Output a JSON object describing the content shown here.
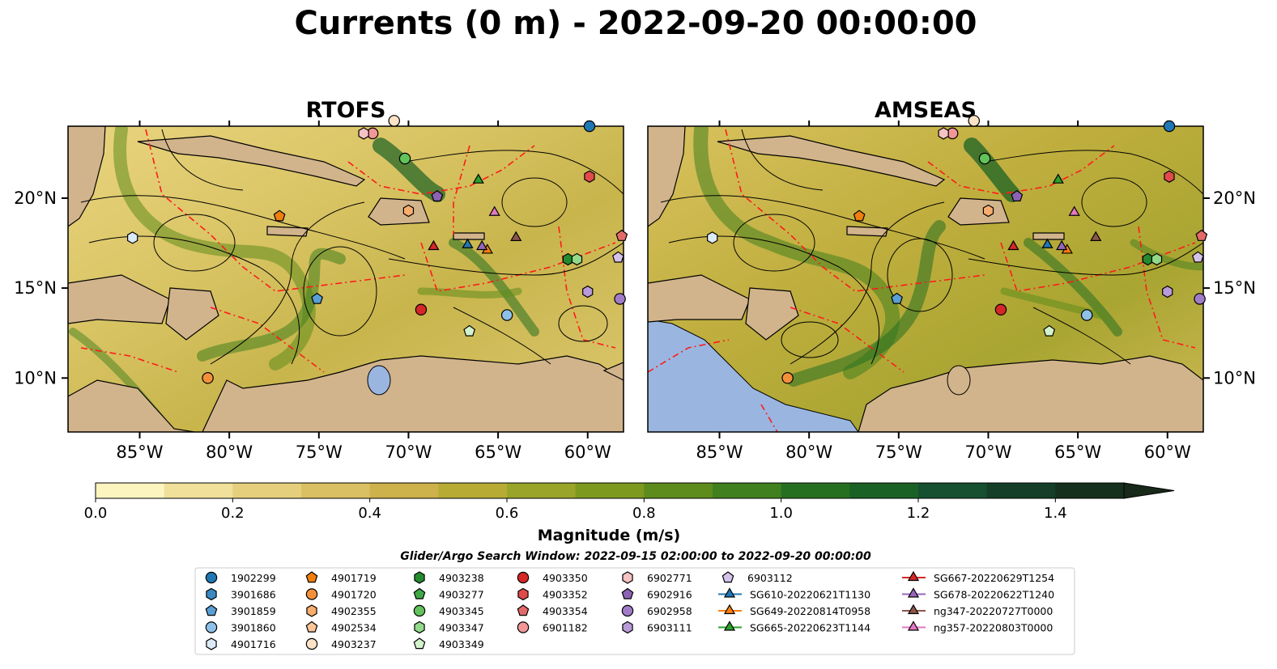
{
  "title": "Currents (0 m) - 2022-09-20 00:00:00",
  "chart_data": {
    "type": "heatmap",
    "panels": [
      {
        "title": "RTOFS",
        "model": "RTOFS"
      },
      {
        "title": "AMSEAS",
        "model": "AMSEAS"
      }
    ],
    "lon_range": [
      -89,
      -58
    ],
    "lat_range": [
      7,
      24
    ],
    "x_ticks": [
      {
        "value": -85,
        "label": "85°W"
      },
      {
        "value": -80,
        "label": "80°W"
      },
      {
        "value": -75,
        "label": "75°W"
      },
      {
        "value": -70,
        "label": "70°W"
      },
      {
        "value": -65,
        "label": "65°W"
      },
      {
        "value": -60,
        "label": "60°W"
      }
    ],
    "y_ticks": [
      {
        "value": 20,
        "label": "20°N"
      },
      {
        "value": 15,
        "label": "15°N"
      },
      {
        "value": 10,
        "label": "10°N"
      }
    ],
    "colorbar": {
      "label": "Magnitude (m/s)",
      "min": 0.0,
      "max": 1.6,
      "extend": "max",
      "ticks": [
        {
          "value": 0.0,
          "label": "0.0"
        },
        {
          "value": 0.2,
          "label": "0.2"
        },
        {
          "value": 0.4,
          "label": "0.4"
        },
        {
          "value": 0.6,
          "label": "0.6"
        },
        {
          "value": 0.8,
          "label": "0.8"
        },
        {
          "value": 1.0,
          "label": "1.0"
        },
        {
          "value": 1.2,
          "label": "1.2"
        },
        {
          "value": 1.4,
          "label": "1.4"
        }
      ],
      "colors": [
        "#fdf5c0",
        "#f0e09a",
        "#e6cf7c",
        "#dac062",
        "#cdb14a",
        "#b7ab34",
        "#9aa428",
        "#7d9a1f",
        "#5e8c1c",
        "#41801e",
        "#276f20",
        "#196124",
        "#165030",
        "#143e27",
        "#15301d",
        "#182819"
      ]
    },
    "search_window": "Glider/Argo Search Window: 2022-09-15 02:00:00 to 2022-09-20 00:00:00",
    "legend_columns": [
      [
        {
          "label": "1902299",
          "marker": "circle",
          "color": "#1f77b4"
        },
        {
          "label": "3901686",
          "marker": "hexagon",
          "color": "#3a8ac2"
        },
        {
          "label": "3901859",
          "marker": "pentagon",
          "color": "#5a9fd4"
        },
        {
          "label": "3901860",
          "marker": "circle",
          "color": "#8ec1e8"
        },
        {
          "label": "4901716",
          "marker": "hexagon",
          "color": "#dbeaf7"
        }
      ],
      [
        {
          "label": "4901719",
          "marker": "pentagon",
          "color": "#f07f0e"
        },
        {
          "label": "4901720",
          "marker": "circle",
          "color": "#f5903a"
        },
        {
          "label": "4902355",
          "marker": "hexagon",
          "color": "#f8ad6e"
        },
        {
          "label": "4902534",
          "marker": "pentagon",
          "color": "#fbc597"
        },
        {
          "label": "4903237",
          "marker": "circle",
          "color": "#fde3c6"
        }
      ],
      [
        {
          "label": "4903238",
          "marker": "hexagon",
          "color": "#238b2e"
        },
        {
          "label": "4903277",
          "marker": "pentagon",
          "color": "#40a844"
        },
        {
          "label": "4903345",
          "marker": "circle",
          "color": "#62c25c"
        },
        {
          "label": "4903347",
          "marker": "hexagon",
          "color": "#93d98a"
        },
        {
          "label": "4903349",
          "marker": "pentagon",
          "color": "#d2f2cb"
        }
      ],
      [
        {
          "label": "4903350",
          "marker": "circle",
          "color": "#d62728"
        },
        {
          "label": "4903352",
          "marker": "hexagon",
          "color": "#e04a4a"
        },
        {
          "label": "4903354",
          "marker": "pentagon",
          "color": "#e46a6a"
        },
        {
          "label": "6901182",
          "marker": "circle",
          "color": "#f19797"
        }
      ],
      [
        {
          "label": "6902771",
          "marker": "hexagon",
          "color": "#f7c2c2"
        },
        {
          "label": "6902916",
          "marker": "pentagon",
          "color": "#8c62b5"
        },
        {
          "label": "6902958",
          "marker": "circle",
          "color": "#a07cc8"
        },
        {
          "label": "6903111",
          "marker": "hexagon",
          "color": "#b89bd8"
        }
      ],
      [
        {
          "label": "6903112",
          "marker": "pentagon",
          "color": "#d4c2ea"
        },
        {
          "label": "SG610-20220621T1130",
          "marker": "triangle",
          "color": "#1f77b4"
        },
        {
          "label": "SG649-20220814T0958",
          "marker": "triangle",
          "color": "#ff7f0e"
        },
        {
          "label": "SG665-20220623T1144",
          "marker": "triangle",
          "color": "#2ca02c"
        }
      ],
      [
        {
          "label": "SG667-20220629T1254",
          "marker": "triangle",
          "color": "#d62728"
        },
        {
          "label": "SG678-20220622T1240",
          "marker": "triangle",
          "color": "#9467bd"
        },
        {
          "label": "ng347-20220727T0000",
          "marker": "triangle",
          "color": "#8c564b"
        },
        {
          "label": "ng357-20220803T0000",
          "marker": "triangle",
          "color": "#e377c2"
        }
      ]
    ],
    "stations": [
      {
        "label": "1902299",
        "lon": -59.9,
        "lat": 24.0
      },
      {
        "label": "3901859",
        "lon": -75.1,
        "lat": 14.4
      },
      {
        "label": "3901860",
        "lon": -64.5,
        "lat": 13.5
      },
      {
        "label": "4901716",
        "lon": -85.4,
        "lat": 17.8
      },
      {
        "label": "4901719",
        "lon": -77.2,
        "lat": 19.0
      },
      {
        "label": "4901720",
        "lon": -81.2,
        "lat": 10.0
      },
      {
        "label": "4902355",
        "lon": -70.0,
        "lat": 19.3
      },
      {
        "label": "4903237",
        "lon": -70.8,
        "lat": 24.3
      },
      {
        "label": "4903238",
        "lon": -61.1,
        "lat": 16.6
      },
      {
        "label": "4903345",
        "lon": -70.2,
        "lat": 22.2
      },
      {
        "label": "4903347",
        "lon": -60.6,
        "lat": 16.6
      },
      {
        "label": "4903349",
        "lon": -66.6,
        "lat": 12.6
      },
      {
        "label": "4903350",
        "lon": -69.3,
        "lat": 13.8
      },
      {
        "label": "4903352",
        "lon": -59.9,
        "lat": 21.2
      },
      {
        "label": "4903354",
        "lon": -58.1,
        "lat": 17.9
      },
      {
        "label": "6901182",
        "lon": -72.0,
        "lat": 23.6
      },
      {
        "label": "6902771",
        "lon": -72.5,
        "lat": 23.6
      },
      {
        "label": "6902916",
        "lon": -68.4,
        "lat": 20.1
      },
      {
        "label": "6902958",
        "lon": -58.2,
        "lat": 14.4
      },
      {
        "label": "6903111",
        "lon": -60.0,
        "lat": 14.8
      },
      {
        "label": "6903112",
        "lon": -58.3,
        "lat": 16.7
      },
      {
        "label": "SG610-20220621T1130",
        "lon": -66.7,
        "lat": 17.4
      },
      {
        "label": "SG649-20220814T0958",
        "lon": -65.6,
        "lat": 17.1
      },
      {
        "label": "SG665-20220623T1144",
        "lon": -66.1,
        "lat": 21.0
      },
      {
        "label": "SG667-20220629T1254",
        "lon": -68.6,
        "lat": 17.3
      },
      {
        "label": "SG678-20220622T1240",
        "lon": -65.9,
        "lat": 17.3
      },
      {
        "label": "ng347-20220727T0000",
        "lon": -64.0,
        "lat": 17.8
      },
      {
        "label": "ng357-20220803T0000",
        "lon": -65.2,
        "lat": 19.2
      }
    ]
  }
}
